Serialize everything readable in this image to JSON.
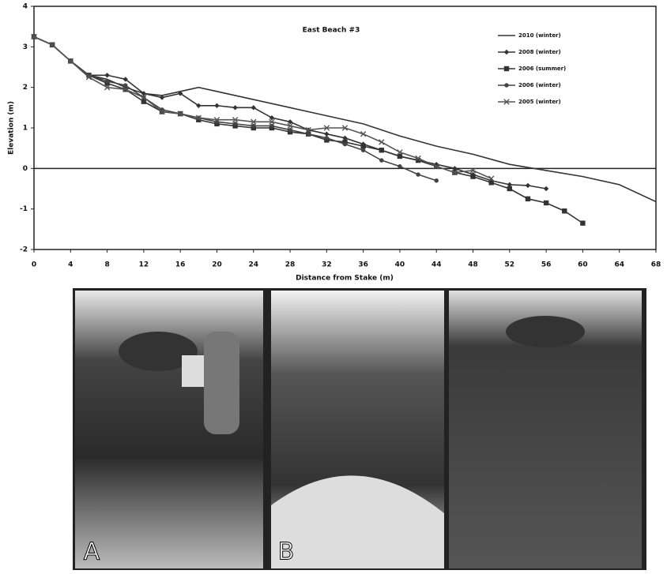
{
  "chart_data": {
    "type": "line",
    "title": "East Beach #3",
    "x_label": "Distance from Stake (m)",
    "y_label": "Elevation (m)",
    "xlim": [
      0,
      68
    ],
    "xticks": [
      0,
      4,
      8,
      12,
      16,
      20,
      24,
      28,
      32,
      36,
      40,
      44,
      48,
      52,
      56,
      60,
      64,
      68
    ],
    "ylim": [
      -2,
      4
    ],
    "yticks": [
      -2,
      -1,
      0,
      1,
      2,
      3,
      4
    ],
    "zero_line": true,
    "legend": "upper right",
    "series": [
      {
        "name": "2010 (winter)",
        "color": "#333",
        "marker": "none",
        "x": [
          0,
          2,
          4,
          6,
          8,
          10,
          12,
          14,
          16,
          18,
          20,
          24,
          28,
          32,
          36,
          40,
          44,
          48,
          52,
          56,
          60,
          64,
          68
        ],
        "values": [
          3.25,
          3.05,
          2.65,
          2.3,
          2.2,
          2.0,
          1.85,
          1.8,
          1.9,
          2.0,
          1.9,
          1.7,
          1.5,
          1.3,
          1.1,
          0.8,
          0.55,
          0.35,
          0.1,
          -0.05,
          -0.2,
          -0.4,
          -0.82
        ]
      },
      {
        "name": "2008 (winter)",
        "color": "#333",
        "marker": "diamond",
        "x": [
          0,
          2,
          4,
          6,
          8,
          10,
          12,
          14,
          16,
          18,
          20,
          22,
          24,
          26,
          28,
          30,
          32,
          34,
          36,
          38,
          40,
          42,
          44,
          46,
          48,
          50,
          52,
          54,
          56
        ],
        "values": [
          3.25,
          3.05,
          2.65,
          2.3,
          2.3,
          2.2,
          1.85,
          1.75,
          1.85,
          1.55,
          1.55,
          1.5,
          1.5,
          1.25,
          1.15,
          0.95,
          0.85,
          0.75,
          0.6,
          0.45,
          0.3,
          0.2,
          0.1,
          0.0,
          -0.15,
          -0.3,
          -0.4,
          -0.42,
          -0.5
        ]
      },
      {
        "name": "2006 (summer)",
        "color": "#333",
        "marker": "square",
        "x": [
          0,
          2,
          4,
          6,
          8,
          10,
          12,
          14,
          16,
          18,
          20,
          22,
          24,
          26,
          28,
          30,
          32,
          34,
          36,
          38,
          40,
          42,
          44,
          46,
          48,
          50,
          52,
          54,
          56,
          58,
          60
        ],
        "values": [
          3.25,
          3.05,
          2.65,
          2.3,
          2.1,
          1.95,
          1.65,
          1.4,
          1.35,
          1.2,
          1.1,
          1.05,
          1.0,
          1.0,
          0.9,
          0.85,
          0.7,
          0.65,
          0.55,
          0.45,
          0.3,
          0.2,
          0.05,
          -0.1,
          -0.2,
          -0.35,
          -0.5,
          -0.75,
          -0.85,
          -1.05,
          -1.35
        ]
      },
      {
        "name": "2006 (winter)",
        "color": "#444",
        "marker": "circle",
        "x": [
          0,
          2,
          4,
          6,
          8,
          10,
          12,
          14,
          16,
          18,
          20,
          22,
          24,
          26,
          28,
          30,
          32,
          34,
          36,
          38,
          40,
          42,
          44
        ],
        "values": [
          3.25,
          3.05,
          2.65,
          2.3,
          2.15,
          2.05,
          1.75,
          1.45,
          1.35,
          1.25,
          1.15,
          1.1,
          1.05,
          1.05,
          0.95,
          0.85,
          0.75,
          0.6,
          0.45,
          0.2,
          0.05,
          -0.15,
          -0.3
        ]
      },
      {
        "name": "2005 (winter)",
        "color": "#555",
        "marker": "x",
        "x": [
          0,
          2,
          4,
          6,
          8,
          10,
          12,
          14,
          16,
          18,
          20,
          22,
          24,
          26,
          28,
          30,
          32,
          34,
          36,
          38,
          40,
          42,
          44,
          46,
          48,
          50
        ],
        "values": [
          3.25,
          3.05,
          2.65,
          2.25,
          2.0,
          1.95,
          1.75,
          1.4,
          1.35,
          1.25,
          1.2,
          1.2,
          1.15,
          1.15,
          1.05,
          0.95,
          1.0,
          1.0,
          0.85,
          0.65,
          0.4,
          0.25,
          0.05,
          -0.1,
          -0.05,
          -0.25
        ]
      }
    ]
  },
  "panel_labels": [
    "A",
    "B"
  ]
}
